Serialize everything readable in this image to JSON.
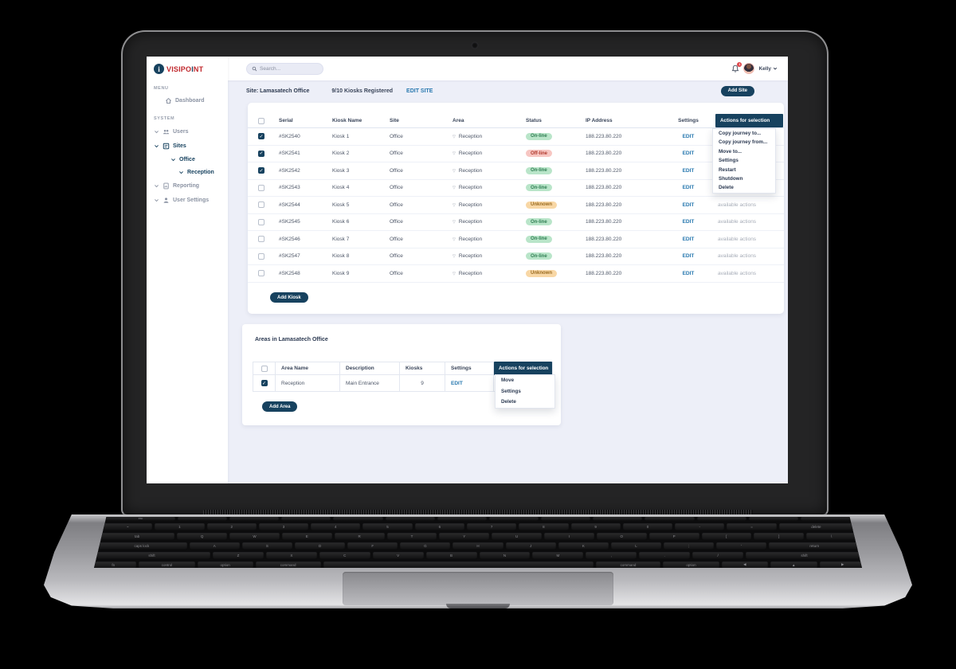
{
  "brand": {
    "prefix": "VISIPO",
    "accent_i": "I",
    "suffix": "NT"
  },
  "sidebar": {
    "menu_label": "MENU",
    "system_label": "SYSTEM",
    "dashboard": "Dashboard",
    "items": [
      {
        "label": "Users",
        "active": false
      },
      {
        "label": "Sites",
        "active": true
      },
      {
        "label": "Reporting",
        "active": false
      },
      {
        "label": "User Settings",
        "active": false
      }
    ],
    "sub_items": [
      {
        "label": "Office"
      },
      {
        "label": "Reception"
      }
    ]
  },
  "topbar": {
    "search_placeholder": "Search...",
    "notification_count": "1",
    "user_name": "Kelly"
  },
  "site_header": {
    "site_label": "Site: Lamasatech Office",
    "kiosks_registered": "9/10 Kiosks Registered",
    "edit_site": "EDIT SITE",
    "add_site": "Add Site"
  },
  "kiosk_table": {
    "headers": [
      "Serial",
      "Kiosk Name",
      "Site",
      "Area",
      "Status",
      "IP Address",
      "Settings"
    ],
    "actions_button": "Actions for selection",
    "actions_menu": [
      "Copy journey to...",
      "Copy journey from...",
      "Move to...",
      "Settings",
      "Restart",
      "Shutdown",
      "Delete"
    ],
    "edit_label": "EDIT",
    "available_actions_label": "available actions",
    "add_button": "Add Kiosk",
    "rows": [
      {
        "checked": true,
        "serial": "#SK2540",
        "name": "Kiosk 1",
        "site": "Office",
        "area": "Reception",
        "status": "On-line",
        "ip": "188.223.80.220"
      },
      {
        "checked": true,
        "serial": "#SK2541",
        "name": "Kiosk 2",
        "site": "Office",
        "area": "Reception",
        "status": "Off-line",
        "ip": "188.223.80.220"
      },
      {
        "checked": true,
        "serial": "#SK2542",
        "name": "Kiosk 3",
        "site": "Office",
        "area": "Reception",
        "status": "On-line",
        "ip": "188.223.80.220"
      },
      {
        "checked": false,
        "serial": "#SK2543",
        "name": "Kiosk 4",
        "site": "Office",
        "area": "Reception",
        "status": "On-line",
        "ip": "188.223.80.220"
      },
      {
        "checked": false,
        "serial": "#SK2544",
        "name": "Kiosk 5",
        "site": "Office",
        "area": "Reception",
        "status": "Unknown",
        "ip": "188.223.80.220"
      },
      {
        "checked": false,
        "serial": "#SK2545",
        "name": "Kiosk 6",
        "site": "Office",
        "area": "Reception",
        "status": "On-line",
        "ip": "188.223.80.220"
      },
      {
        "checked": false,
        "serial": "#SK2546",
        "name": "Kiosk 7",
        "site": "Office",
        "area": "Reception",
        "status": "On-line",
        "ip": "188.223.80.220"
      },
      {
        "checked": false,
        "serial": "#SK2547",
        "name": "Kiosk 8",
        "site": "Office",
        "area": "Reception",
        "status": "On-line",
        "ip": "188.223.80.220"
      },
      {
        "checked": false,
        "serial": "#SK2548",
        "name": "Kiosk 9",
        "site": "Office",
        "area": "Reception",
        "status": "Unknown",
        "ip": "188.223.80.220"
      }
    ]
  },
  "areas_panel": {
    "title": "Areas in Lamasatech Office",
    "headers": [
      "Area Name",
      "Description",
      "Kiosks",
      "Settings"
    ],
    "actions_button": "Actions for selection",
    "actions_menu": [
      "Move",
      "Settings",
      "Delete"
    ],
    "edit_label": "EDIT",
    "add_button": "Add Area",
    "rows": [
      {
        "checked": true,
        "name": "Reception",
        "description": "Main Entrance",
        "kiosks": "9"
      }
    ]
  },
  "status_colors": {
    "online_bg": "#b9e5c9",
    "online_text": "#2f7d52",
    "offline_bg": "#f7c6c2",
    "offline_text": "#b03a2e",
    "unknown_bg": "#f8d7a5",
    "unknown_text": "#9a6b1f"
  },
  "accent": {
    "navy": "#17425f",
    "link_blue": "#2878af",
    "logo_red": "#c0282d"
  },
  "laptop_keyboard": {
    "rows": [
      [
        "esc|1.4",
        "",
        "",
        "",
        "",
        "",
        "",
        "",
        "",
        "",
        "",
        "",
        "",
        ""
      ],
      [
        "~",
        "1",
        "2",
        "3",
        "4",
        "5",
        "6",
        "7",
        "8",
        "9",
        "0",
        "-",
        "=",
        "delete|1.5"
      ],
      [
        "tab|1.5",
        "Q",
        "W",
        "E",
        "R",
        "T",
        "Y",
        "U",
        "I",
        "O",
        "P",
        "[",
        "]",
        "\\"
      ],
      [
        "caps lock|1.8",
        "A",
        "S",
        "D",
        "F",
        "G",
        "H",
        "J",
        "K",
        "L",
        ";",
        "'",
        "return|1.8"
      ],
      [
        "shift|2.3",
        "Z",
        "X",
        "C",
        "V",
        "B",
        "N",
        "M",
        ",",
        ".",
        "/",
        "shift|2.3"
      ],
      [
        "fn",
        "control|1.2",
        "option|1.2",
        "command|1.4",
        "|5.8",
        "command|1.4",
        "option|1.2",
        "◀",
        "▲",
        "▶"
      ]
    ]
  }
}
